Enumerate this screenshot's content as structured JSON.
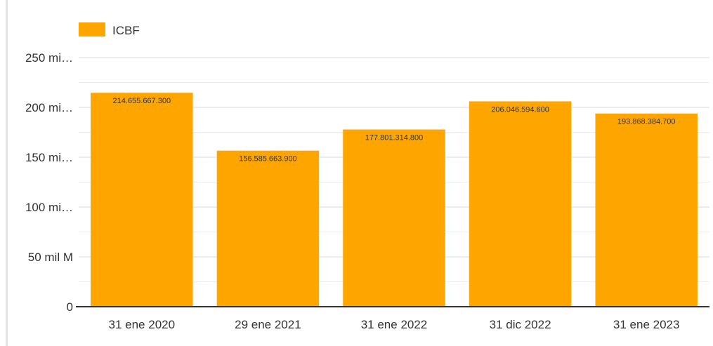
{
  "legend": {
    "label": "ICBF"
  },
  "colors": {
    "bar": "#FFA500",
    "grid_major": "#d9d9d9",
    "grid_minor": "#ececec",
    "axis": "#333333"
  },
  "chart_data": {
    "type": "bar",
    "categories": [
      "31 ene 2020",
      "29 ene 2021",
      "31 ene 2022",
      "31 dic 2022",
      "31 ene 2023"
    ],
    "series": [
      {
        "name": "ICBF",
        "values": [
          214655667300,
          156585663900,
          177801314800,
          206046594600,
          193868384700
        ],
        "data_labels": [
          "214.655.667.300",
          "156.585.663.900",
          "177.801.314.800",
          "206.046.594.600",
          "193.868.384.700"
        ]
      }
    ],
    "yticks": [
      {
        "value": 0,
        "label": "0"
      },
      {
        "value": 50000000000,
        "label": "50 mil M"
      },
      {
        "value": 100000000000,
        "label": "100 mi…"
      },
      {
        "value": 150000000000,
        "label": "150 mi…"
      },
      {
        "value": 200000000000,
        "label": "200 mi…"
      },
      {
        "value": 250000000000,
        "label": "250 mi…"
      }
    ],
    "ylim": [
      0,
      250000000000
    ],
    "grid": true,
    "legend_position": "top-left"
  }
}
